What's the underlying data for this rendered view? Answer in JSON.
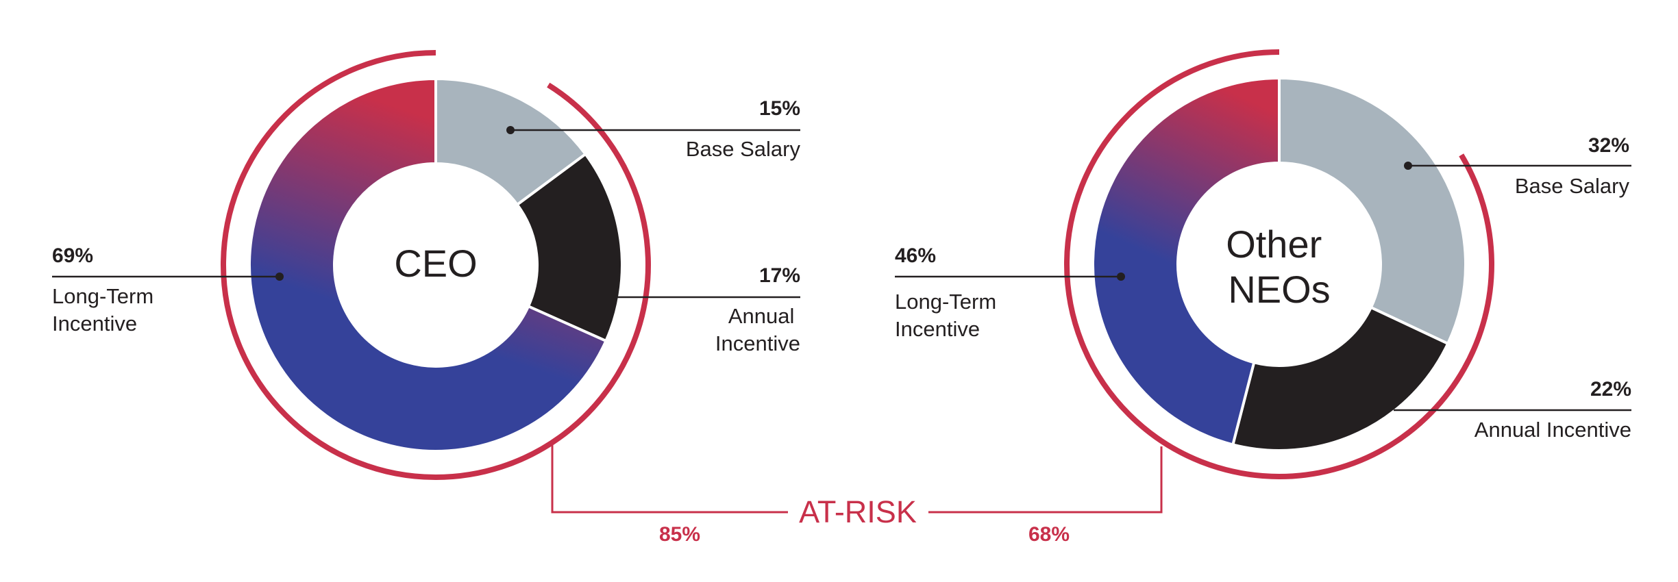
{
  "colors": {
    "base_salary": "#a8b4bd",
    "annual_incentive": "#231f20",
    "ltip_start": "#c8304a",
    "ltip_end": "#35429a",
    "accent": "#c8304a",
    "text": "#231f20"
  },
  "chart_data": [
    {
      "type": "pie",
      "variant": "donut",
      "title": "CEO",
      "center_label": [
        "CEO"
      ],
      "slices": [
        {
          "name": "Base Salary",
          "value": 15,
          "label": "15%",
          "text": [
            "Base Salary"
          ]
        },
        {
          "name": "Annual Incentive",
          "value": 17,
          "label": "17%",
          "text": [
            "Annual",
            "Incentive"
          ]
        },
        {
          "name": "Long-Term Incentive",
          "value": 69,
          "label": "69%",
          "text": [
            "Long-Term",
            "Incentive"
          ]
        }
      ],
      "at_risk": {
        "value": 85,
        "label": "85%"
      }
    },
    {
      "type": "pie",
      "variant": "donut",
      "title": "Other NEOs",
      "center_label": [
        "Other",
        "NEOs"
      ],
      "slices": [
        {
          "name": "Base Salary",
          "value": 32,
          "label": "32%",
          "text": [
            "Base Salary"
          ]
        },
        {
          "name": "Annual Incentive",
          "value": 22,
          "label": "22%",
          "text": [
            "Annual Incentive"
          ]
        },
        {
          "name": "Long-Term Incentive",
          "value": 46,
          "label": "46%",
          "text": [
            "Long-Term",
            "Incentive"
          ]
        }
      ],
      "at_risk": {
        "value": 68,
        "label": "68%"
      }
    }
  ],
  "at_risk_label": "AT-RISK"
}
